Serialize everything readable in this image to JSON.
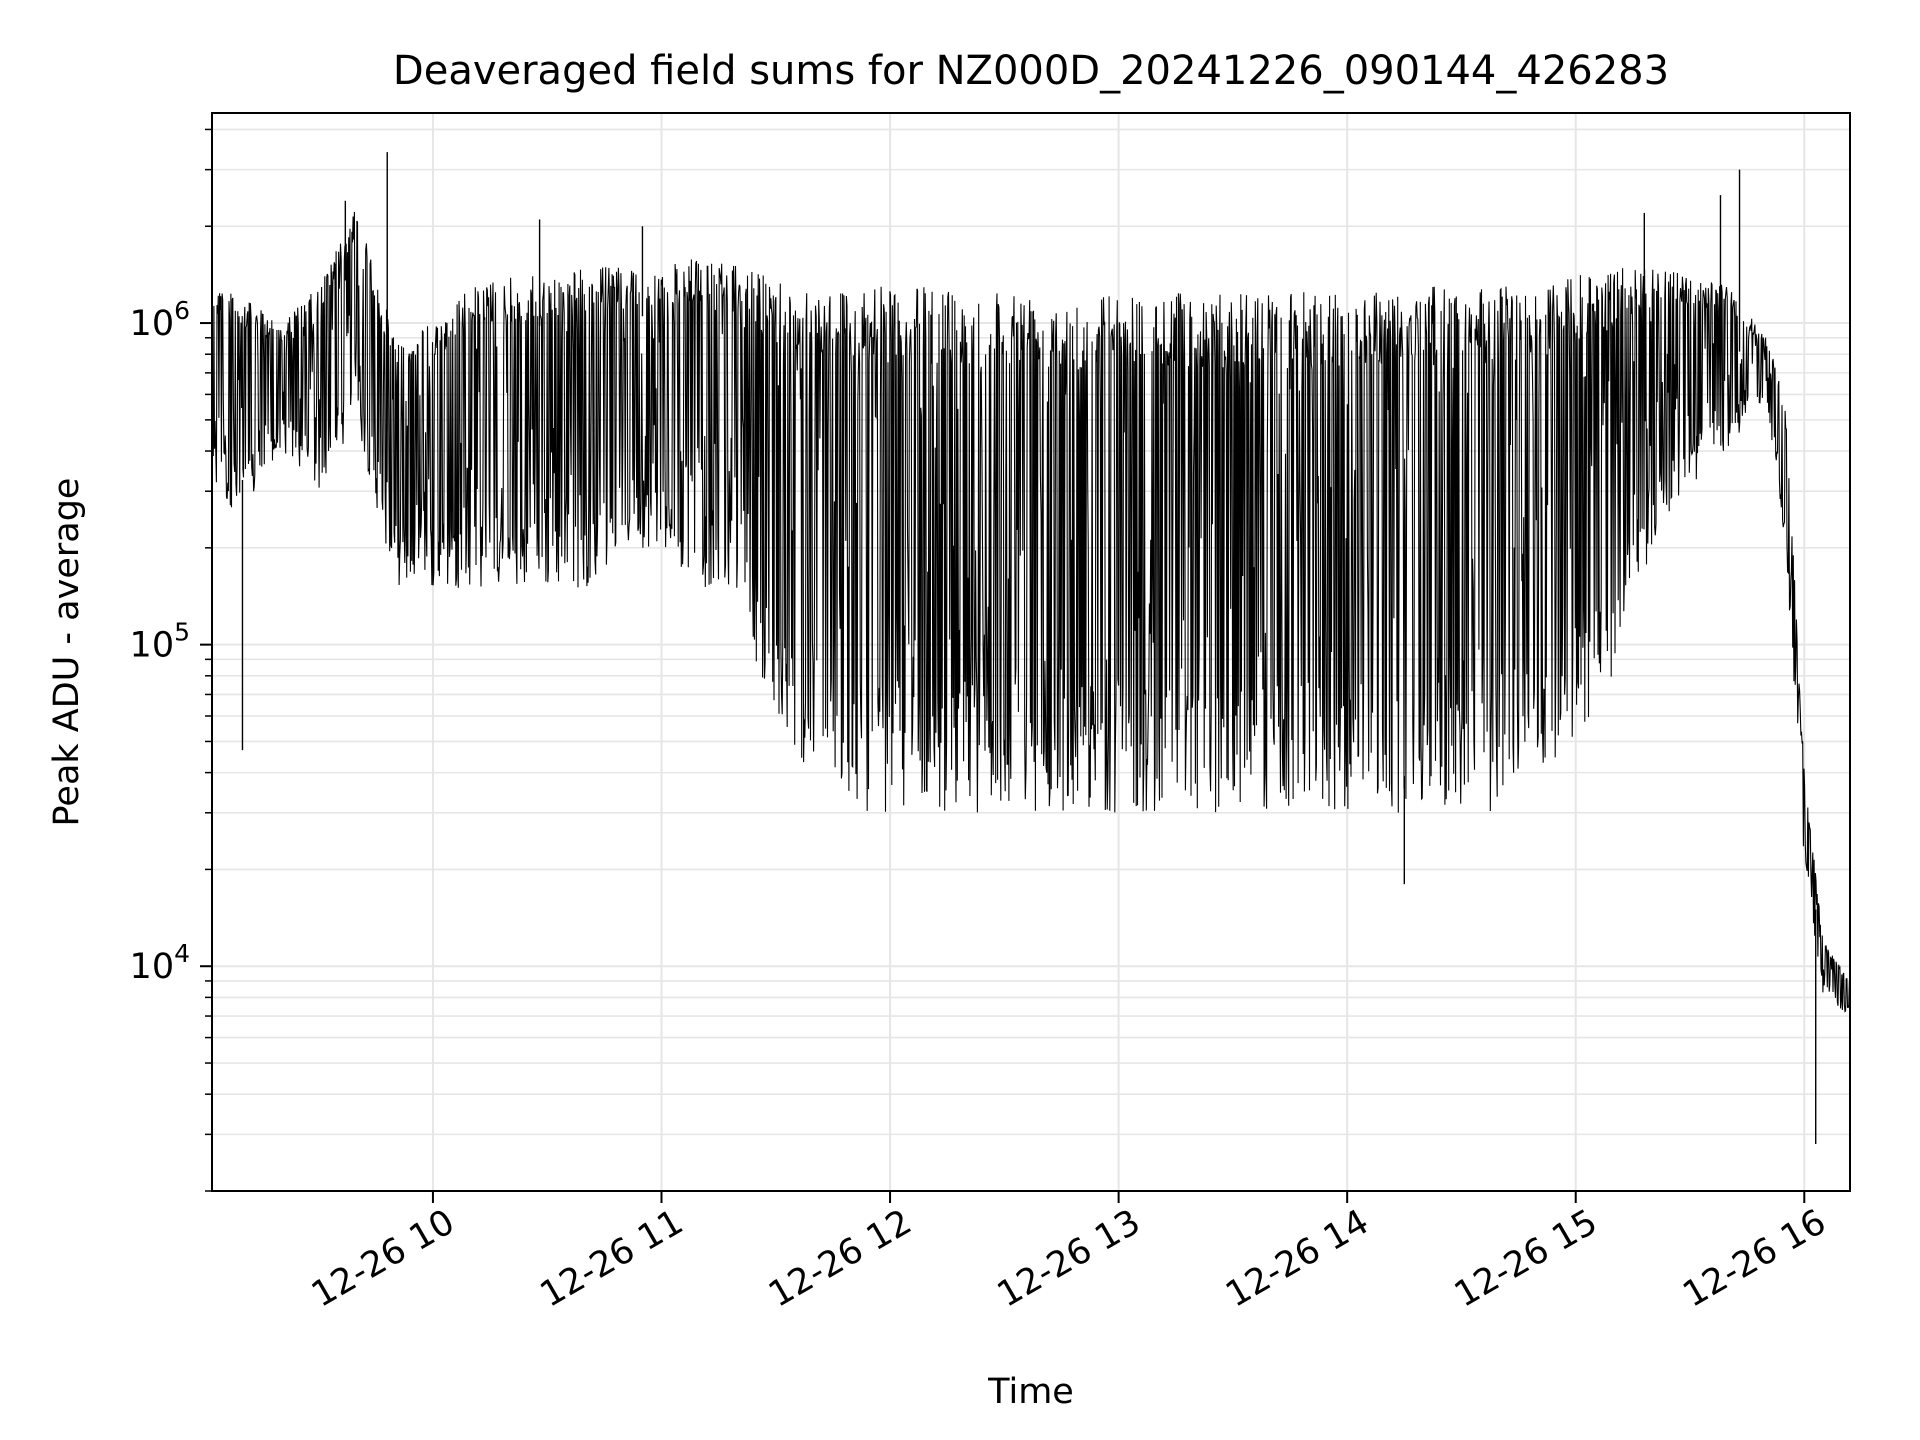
{
  "chart_data": {
    "type": "line",
    "title": "Deaveraged field sums for NZ000D_20241226_090144_426283",
    "xlabel": "Time",
    "ylabel": "Peak ADU - average",
    "y_scale": "log",
    "xlim": [
      "2024-12-26T09:02",
      "2024-12-26T16:12"
    ],
    "ylim": [
      2000,
      4500000
    ],
    "x_ticks": [
      {
        "label": "12-26 10",
        "value": "2024-12-26T10:00"
      },
      {
        "label": "12-26 11",
        "value": "2024-12-26T11:00"
      },
      {
        "label": "12-26 12",
        "value": "2024-12-26T12:00"
      },
      {
        "label": "12-26 13",
        "value": "2024-12-26T13:00"
      },
      {
        "label": "12-26 14",
        "value": "2024-12-26T14:00"
      },
      {
        "label": "12-26 15",
        "value": "2024-12-26T15:00"
      },
      {
        "label": "12-26 16",
        "value": "2024-12-26T16:00"
      }
    ],
    "y_ticks": [
      {
        "base": "10",
        "exp": "4",
        "value": 10000
      },
      {
        "base": "10",
        "exp": "5",
        "value": 100000
      },
      {
        "base": "10",
        "exp": "6",
        "value": 1000000
      }
    ],
    "grid": true,
    "line_color": "#000000",
    "grid_color": "#e6e6e6",
    "series": [
      {
        "x": [
          "2024-12-26T09:02",
          "2024-12-26T09:10",
          "2024-12-26T09:20",
          "2024-12-26T09:30",
          "2024-12-26T09:40",
          "2024-12-26T09:50",
          "2024-12-26T10:00",
          "2024-12-26T10:10",
          "2024-12-26T10:20",
          "2024-12-26T10:30",
          "2024-12-26T10:40",
          "2024-12-26T10:50",
          "2024-12-26T11:00",
          "2024-12-26T11:10",
          "2024-12-26T11:20",
          "2024-12-26T11:30",
          "2024-12-26T11:40",
          "2024-12-26T11:50",
          "2024-12-26T12:00",
          "2024-12-26T12:10",
          "2024-12-26T12:20",
          "2024-12-26T12:30",
          "2024-12-26T12:40",
          "2024-12-26T12:50",
          "2024-12-26T13:00",
          "2024-12-26T13:10",
          "2024-12-26T13:20",
          "2024-12-26T13:30",
          "2024-12-26T13:40",
          "2024-12-26T13:50",
          "2024-12-26T14:00",
          "2024-12-26T14:10",
          "2024-12-26T14:20",
          "2024-12-26T14:30",
          "2024-12-26T14:40",
          "2024-12-26T14:50",
          "2024-12-26T15:00",
          "2024-12-26T15:10",
          "2024-12-26T15:20",
          "2024-12-26T15:30",
          "2024-12-26T15:40",
          "2024-12-26T15:50",
          "2024-12-26T15:55",
          "2024-12-26T16:00",
          "2024-12-26T16:05",
          "2024-12-26T16:12"
        ],
        "high": [
          1400000,
          1200000,
          1000000,
          1300000,
          2300000,
          900000,
          1000000,
          1300000,
          1400000,
          1400000,
          1500000,
          1500000,
          1500000,
          1600000,
          1500000,
          1400000,
          1300000,
          1300000,
          1300000,
          1300000,
          1300000,
          1300000,
          1250000,
          1250000,
          1250000,
          1250000,
          1250000,
          1250000,
          1250000,
          1250000,
          1250000,
          1300000,
          1300000,
          1300000,
          1300000,
          1300000,
          1400000,
          1500000,
          1500000,
          1400000,
          1300000,
          900000,
          600000,
          40000,
          12000,
          9000
        ],
        "low": [
          300000,
          250000,
          400000,
          300000,
          500000,
          150000,
          150000,
          150000,
          150000,
          150000,
          150000,
          200000,
          200000,
          150000,
          150000,
          50000,
          40000,
          30000,
          30000,
          30000,
          30000,
          30000,
          30000,
          30000,
          30000,
          30000,
          30000,
          30000,
          30000,
          30000,
          30000,
          30000,
          30000,
          30000,
          30000,
          40000,
          50000,
          80000,
          200000,
          300000,
          400000,
          600000,
          200000,
          20000,
          8000,
          7000
        ],
        "spikes": [
          {
            "x": "2024-12-26T09:10",
            "y": 47000
          },
          {
            "x": "2024-12-26T09:37",
            "y": 2400000
          },
          {
            "x": "2024-12-26T09:48",
            "y": 3400000
          },
          {
            "x": "2024-12-26T10:28",
            "y": 2100000
          },
          {
            "x": "2024-12-26T10:55",
            "y": 2000000
          },
          {
            "x": "2024-12-26T14:15",
            "y": 18000
          },
          {
            "x": "2024-12-26T15:18",
            "y": 2200000
          },
          {
            "x": "2024-12-26T15:38",
            "y": 2500000
          },
          {
            "x": "2024-12-26T15:43",
            "y": 3000000
          },
          {
            "x": "2024-12-26T16:03",
            "y": 2800
          }
        ]
      }
    ]
  }
}
